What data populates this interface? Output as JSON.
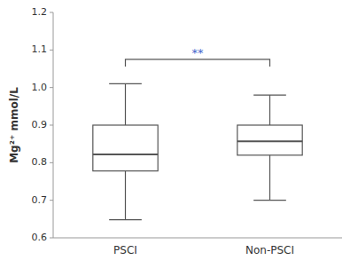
{
  "chart_data": {
    "type": "box",
    "categories": [
      "PSCI",
      "Non-PSCI"
    ],
    "boxes": [
      {
        "whisker_low": 0.648,
        "q1": 0.778,
        "median": 0.822,
        "q3": 0.9,
        "whisker_high": 1.01
      },
      {
        "whisker_low": 0.7,
        "q1": 0.82,
        "median": 0.857,
        "q3": 0.9,
        "whisker_high": 0.98
      }
    ],
    "color": "#555555",
    "ylabel": "Mg²⁺ mmol/L",
    "ylim": [
      0.6,
      1.2
    ],
    "yticks": [
      0.6,
      0.7,
      0.8,
      0.9,
      {
        "value": 1.0,
        "label": "1.0"
      },
      1.1,
      1.2
    ],
    "annotations": [
      {
        "text": "**",
        "y": 1.075,
        "color": "#4466cc"
      }
    ],
    "grid": false
  }
}
